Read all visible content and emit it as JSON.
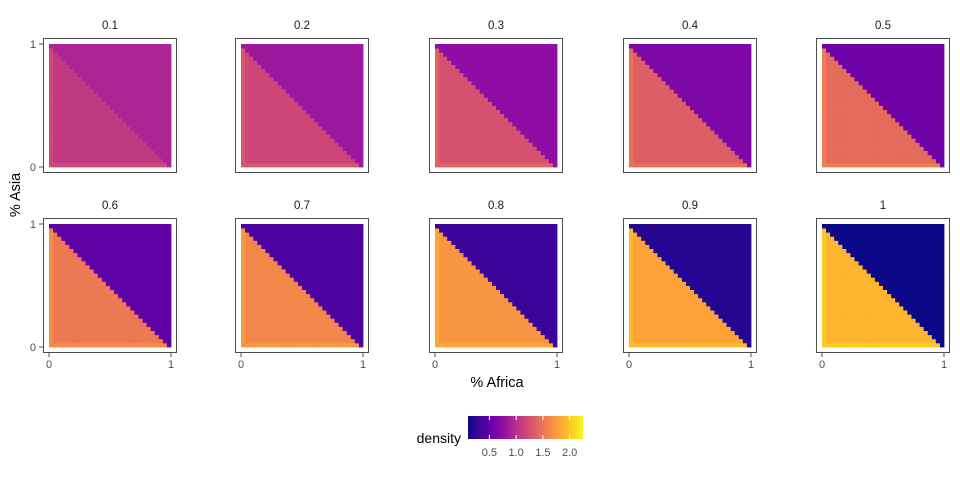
{
  "chart_data": {
    "type": "heatmap",
    "xlabel": "% Africa",
    "ylabel": "% Asia",
    "xlim": [
      0,
      1
    ],
    "ylim": [
      0,
      1
    ],
    "x_ticks": [
      "0",
      "1"
    ],
    "y_ticks": [
      "0",
      "1"
    ],
    "facets": [
      {
        "label": "0.1",
        "low_density": 1.08,
        "high_density": 0.92
      },
      {
        "label": "0.2",
        "low_density": 1.17,
        "high_density": 0.83
      },
      {
        "label": "0.3",
        "low_density": 1.26,
        "high_density": 0.74
      },
      {
        "label": "0.4",
        "low_density": 1.35,
        "high_density": 0.65
      },
      {
        "label": "0.5",
        "low_density": 1.44,
        "high_density": 0.56
      },
      {
        "label": "0.6",
        "low_density": 1.53,
        "high_density": 0.47
      },
      {
        "label": "0.7",
        "low_density": 1.62,
        "high_density": 0.38
      },
      {
        "label": "0.8",
        "low_density": 1.71,
        "high_density": 0.29
      },
      {
        "label": "0.9",
        "low_density": 1.8,
        "high_density": 0.2
      },
      {
        "label": "1",
        "low_density": 1.9,
        "high_density": 0.1
      }
    ],
    "legend": {
      "title": "density",
      "position": "bottom",
      "range": [
        0.1,
        2.25
      ],
      "ticks": [
        0.5,
        1.0,
        1.5,
        2.0
      ],
      "tick_labels": [
        "0.5",
        "1.0",
        "1.5",
        "2.0"
      ],
      "palette": "plasma"
    },
    "grid": false
  }
}
